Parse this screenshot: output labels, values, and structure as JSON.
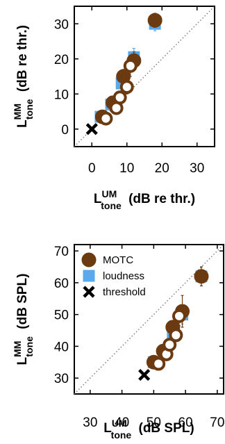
{
  "chart_data": [
    {
      "type": "scatter",
      "xlabel": {
        "main": "L",
        "sup": "UM",
        "sub": "tone",
        "units": "(dB re thr.)"
      },
      "ylabel": {
        "main": "L",
        "sup": "MM",
        "sub": "tone",
        "units": "(dB re thr.)"
      },
      "xlim": [
        -5,
        35
      ],
      "ylim": [
        -5,
        35
      ],
      "xticks": [
        0,
        10,
        20,
        30
      ],
      "yticks": [
        0,
        10,
        20,
        30
      ],
      "identity_line": true,
      "series": [
        {
          "key": "motc_filled",
          "marker": "filled-circle",
          "color": "#6b3a10",
          "x": [
            3,
            6,
            9,
            12,
            18
          ],
          "y": [
            3.5,
            7.5,
            15,
            19.5,
            31
          ],
          "err": [
            0.8,
            1.2,
            2,
            2.5,
            2
          ]
        },
        {
          "key": "motc_open",
          "marker": "open-circle",
          "color": "#6b3a10",
          "x": [
            4,
            7,
            8,
            10,
            11
          ],
          "y": [
            3,
            6,
            9,
            12,
            18
          ],
          "err": [
            0.8,
            1,
            1.5,
            2,
            3
          ]
        },
        {
          "key": "loudness",
          "marker": "square",
          "color": "#5aa9ec",
          "x": [
            2.5,
            5.5,
            8.5,
            12,
            18
          ],
          "y": [
            3.5,
            7,
            13,
            20.5,
            30
          ],
          "err": [
            0.5,
            1,
            2,
            2.5,
            2
          ]
        },
        {
          "key": "threshold",
          "marker": "cross",
          "color": "#000000",
          "x": [
            0
          ],
          "y": [
            0
          ],
          "err": [
            0
          ]
        }
      ]
    },
    {
      "type": "scatter",
      "xlabel": {
        "main": "L",
        "sup": "UM",
        "sub": "tone",
        "units": "(dB SPL)"
      },
      "ylabel": {
        "main": "L",
        "sup": "MM",
        "sub": "tone",
        "units": "(dB SPL)"
      },
      "xlim": [
        25,
        72
      ],
      "ylim": [
        25,
        72
      ],
      "xticks": [
        30,
        40,
        50,
        60,
        70
      ],
      "yticks": [
        30,
        40,
        50,
        60,
        70
      ],
      "identity_line": true,
      "legend": {
        "position": "top-left",
        "items": [
          {
            "label": "MOTC",
            "marker": "filled-circle",
            "color": "#6b3a10"
          },
          {
            "label": "loudness",
            "marker": "square",
            "color": "#5aa9ec"
          },
          {
            "label": "threshold",
            "marker": "cross",
            "color": "#000000"
          }
        ]
      },
      "series": [
        {
          "key": "motc_filled",
          "marker": "filled-circle",
          "color": "#6b3a10",
          "x": [
            50,
            53,
            56,
            59,
            65
          ],
          "y": [
            35,
            38.5,
            46,
            51,
            62
          ],
          "err": [
            1,
            1.5,
            2,
            5,
            3
          ]
        },
        {
          "key": "motc_open",
          "marker": "open-circle",
          "color": "#6b3a10",
          "x": [
            51.5,
            54,
            55,
            57,
            58
          ],
          "y": [
            34.5,
            37.5,
            40.5,
            43.5,
            49.5
          ],
          "err": [
            1,
            1,
            1.5,
            2,
            3
          ]
        },
        {
          "key": "loudness",
          "marker": "square",
          "color": "#5aa9ec",
          "x": [
            50,
            53.5,
            56,
            59,
            65
          ],
          "y": [
            35,
            38,
            44,
            50,
            62
          ],
          "err": [
            0.5,
            1,
            2,
            3,
            3
          ]
        },
        {
          "key": "threshold",
          "marker": "cross",
          "color": "#000000",
          "x": [
            47
          ],
          "y": [
            31
          ],
          "err": [
            0
          ]
        }
      ]
    }
  ]
}
